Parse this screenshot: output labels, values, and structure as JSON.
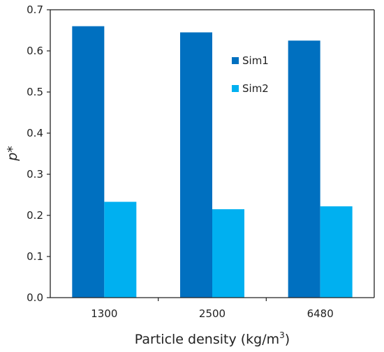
{
  "chart_data": {
    "type": "bar",
    "categories": [
      "1300",
      "2500",
      "6480"
    ],
    "series": [
      {
        "name": "Sim1",
        "values": [
          0.66,
          0.645,
          0.625
        ],
        "color": "#0070C0"
      },
      {
        "name": "Sim2",
        "values": [
          0.233,
          0.215,
          0.222
        ],
        "color": "#00B0F0"
      }
    ],
    "ylim": [
      0,
      0.7
    ],
    "yticks": [
      "0.0",
      "0.1",
      "0.2",
      "0.3",
      "0.4",
      "0.5",
      "0.6",
      "0.7"
    ],
    "ylabel": "p*",
    "xlabel_main": "Particle density (kg/m",
    "xlabel_sup": "3",
    "xlabel_end": ")",
    "legend_position": "top-right inside",
    "grid": false
  }
}
